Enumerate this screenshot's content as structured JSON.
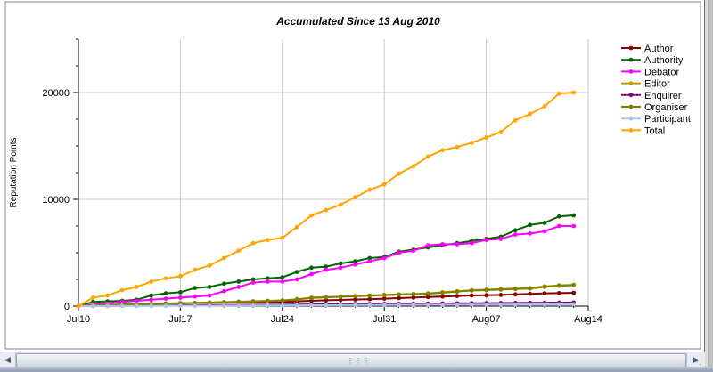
{
  "colors": {
    "Author": "#8b0000",
    "Authority": "#006400",
    "Debator": "#ff00ff",
    "Editor": "#b8a000",
    "Enquirer": "#800080",
    "Organiser": "#808000",
    "Participant": "#a8c4e6",
    "Total": "#ffa500",
    "grid": "#c8c8c8",
    "axis": "#000000"
  },
  "chart_data": {
    "type": "line",
    "title": "Accumulated Since 13 Aug 2010",
    "xlabel": "",
    "ylabel": "Reputation Points",
    "x_tick_labels": [
      "Jul10",
      "Jul17",
      "Jul24",
      "Jul31",
      "Aug07",
      "Aug14"
    ],
    "x_tick_positions": [
      0,
      7,
      14,
      21,
      28,
      35
    ],
    "y_tick_labels": [
      "0",
      "10000",
      "20000"
    ],
    "y_tick_values": [
      0,
      10000,
      20000
    ],
    "xlim": [
      0,
      35
    ],
    "ylim": [
      0,
      25000
    ],
    "grid": true,
    "legend_position": "right",
    "x": [
      0,
      1,
      2,
      3,
      4,
      5,
      6,
      7,
      8,
      9,
      10,
      11,
      12,
      13,
      14,
      15,
      16,
      17,
      18,
      19,
      20,
      21,
      22,
      23,
      24,
      25,
      26,
      27,
      28,
      29,
      30,
      31,
      32,
      33,
      34
    ],
    "series": [
      {
        "name": "Author",
        "values": [
          0,
          80,
          120,
          160,
          200,
          220,
          240,
          260,
          280,
          300,
          320,
          340,
          360,
          380,
          400,
          450,
          500,
          550,
          580,
          620,
          650,
          700,
          750,
          800,
          850,
          900,
          950,
          1000,
          1020,
          1050,
          1100,
          1150,
          1200,
          1220,
          1250
        ]
      },
      {
        "name": "Authority",
        "values": [
          0,
          400,
          450,
          500,
          600,
          1000,
          1200,
          1300,
          1700,
          1800,
          2100,
          2300,
          2500,
          2600,
          2700,
          3200,
          3600,
          3700,
          4000,
          4200,
          4500,
          4600,
          5100,
          5300,
          5500,
          5700,
          5900,
          6100,
          6300,
          6500,
          7100,
          7600,
          7800,
          8400,
          8500
        ]
      },
      {
        "name": "Debator",
        "values": [
          0,
          150,
          250,
          400,
          500,
          600,
          700,
          800,
          900,
          1000,
          1400,
          1800,
          2200,
          2300,
          2300,
          2500,
          3000,
          3400,
          3600,
          3900,
          4200,
          4500,
          5000,
          5200,
          5700,
          5800,
          5800,
          5900,
          6200,
          6300,
          6700,
          6800,
          7000,
          7500,
          7500
        ]
      },
      {
        "name": "Editor",
        "values": [
          0,
          60,
          100,
          140,
          180,
          220,
          250,
          280,
          300,
          340,
          380,
          420,
          460,
          500,
          540,
          650,
          800,
          850,
          900,
          950,
          1000,
          1050,
          1100,
          1150,
          1200,
          1300,
          1400,
          1500,
          1550,
          1600,
          1650,
          1700,
          1850,
          1950,
          2000
        ]
      },
      {
        "name": "Enquirer",
        "values": [
          0,
          10,
          20,
          30,
          40,
          50,
          60,
          70,
          80,
          90,
          100,
          110,
          120,
          130,
          140,
          150,
          160,
          170,
          180,
          190,
          200,
          210,
          220,
          230,
          240,
          250,
          260,
          270,
          280,
          290,
          300,
          310,
          320,
          330,
          340
        ]
      },
      {
        "name": "Organiser",
        "values": [
          0,
          50,
          90,
          130,
          170,
          210,
          240,
          270,
          300,
          330,
          360,
          400,
          440,
          480,
          520,
          620,
          760,
          820,
          880,
          930,
          980,
          1030,
          1080,
          1120,
          1160,
          1260,
          1360,
          1460,
          1500,
          1550,
          1600,
          1650,
          1800,
          1900,
          1950
        ]
      },
      {
        "name": "Participant",
        "values": [
          0,
          5,
          10,
          15,
          20,
          25,
          30,
          35,
          40,
          45,
          50,
          55,
          60,
          65,
          70,
          75,
          80,
          85,
          90,
          95,
          100,
          105,
          110,
          115,
          120,
          125,
          130,
          135,
          140,
          145,
          150,
          155,
          160,
          165,
          170
        ]
      },
      {
        "name": "Total",
        "values": [
          0,
          800,
          1000,
          1500,
          1800,
          2300,
          2600,
          2800,
          3400,
          3800,
          4500,
          5200,
          5900,
          6200,
          6400,
          7400,
          8500,
          9000,
          9500,
          10200,
          10900,
          11400,
          12400,
          13100,
          14000,
          14600,
          14900,
          15300,
          15800,
          16300,
          17400,
          18000,
          18700,
          19900,
          20000
        ]
      }
    ]
  }
}
